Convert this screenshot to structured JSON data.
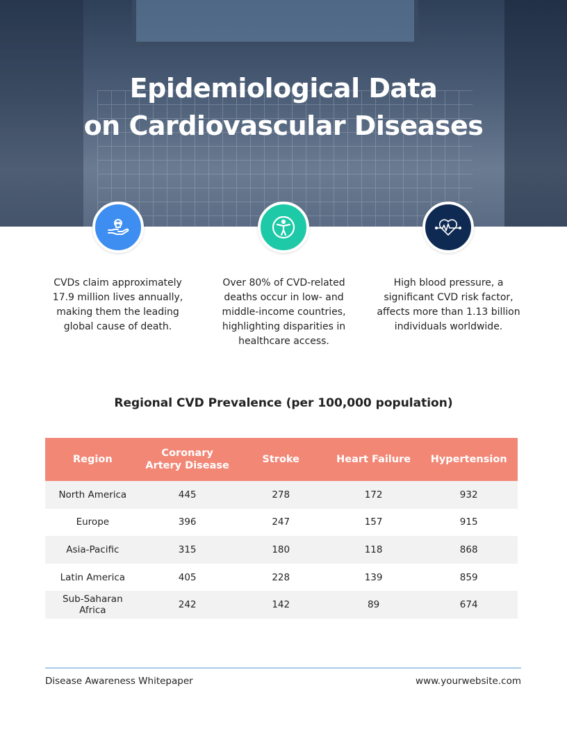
{
  "title_line1": "Epidemiological Data",
  "title_line2": "on Cardiovascular Diseases",
  "stats": [
    {
      "icon": "hand-skull-icon",
      "color": "#3d8ef0",
      "text": "CVDs claim approximately 17.9 million lives annually, making them the leading global cause of death."
    },
    {
      "icon": "accessibility-person-icon",
      "color": "#1ec9a8",
      "text": "Over 80% of CVD-related deaths occur in low- and middle-income countries, highlighting disparities in healthcare access."
    },
    {
      "icon": "heart-pulse-icon",
      "color": "#0e2a52",
      "text": "High blood pressure, a significant CVD risk factor, affects more than 1.13 billion individuals worldwide."
    }
  ],
  "table": {
    "title": "Regional CVD Prevalence (per 100,000 population)",
    "header_color": "#f28776",
    "columns": [
      "Region",
      "Coronary Artery Disease",
      "Stroke",
      "Heart Failure",
      "Hypertension"
    ],
    "rows": [
      [
        "North America",
        "445",
        "278",
        "172",
        "932"
      ],
      [
        "Europe",
        "396",
        "247",
        "157",
        "915"
      ],
      [
        "Asia-Pacific",
        "315",
        "180",
        "118",
        "868"
      ],
      [
        "Latin America",
        "405",
        "228",
        "139",
        "859"
      ],
      [
        "Sub-Saharan Africa",
        "242",
        "142",
        "89",
        "674"
      ]
    ]
  },
  "footer": {
    "left": "Disease Awareness Whitepaper",
    "right": "www.yourwebsite.com"
  }
}
